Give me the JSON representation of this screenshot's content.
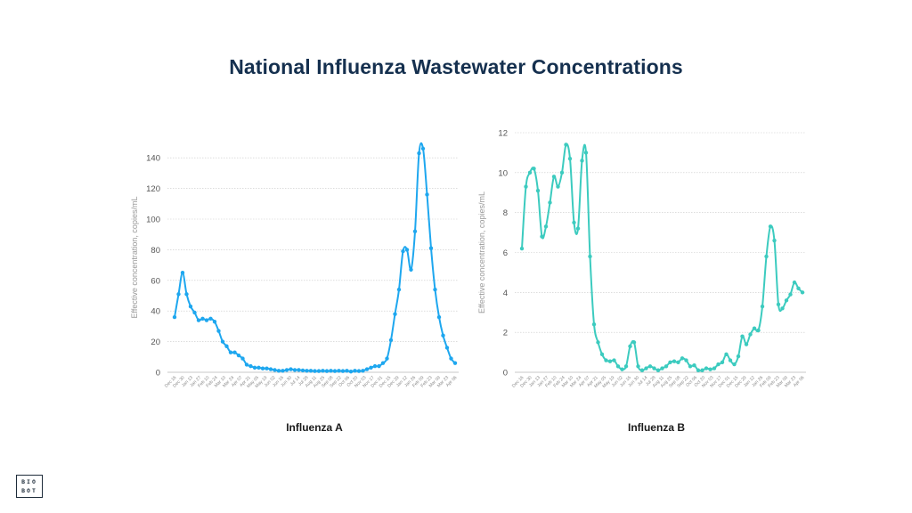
{
  "page_title": "National Influenza Wastewater Concentrations",
  "logo": {
    "line1": "BIO",
    "line2": "BOT"
  },
  "colors": {
    "influenza_a": "#1ea7ef",
    "influenza_b": "#3ccbbf",
    "title": "#15304f",
    "grid": "#c8c8c8"
  },
  "chart_data": [
    {
      "type": "line",
      "title": "Influenza A",
      "ylabel": "Effective concentration, copies/mL",
      "xlabel": "",
      "ylim": [
        0,
        150
      ],
      "yticks": [
        0,
        20,
        40,
        60,
        80,
        100,
        120,
        140
      ],
      "grid": true,
      "x_tick_labels": [
        "Dec 16",
        "Dec 30",
        "Jan 13",
        "Jan 27",
        "Feb 10",
        "Feb 24",
        "Mar 10",
        "Mar 24",
        "Apr 07",
        "Apr 21",
        "May 05",
        "May 19",
        "Jun 02",
        "Jun 16",
        "Jun 30",
        "Jul 14",
        "Jul 28",
        "Aug 11",
        "Aug 25",
        "Sep 08",
        "Sep 22",
        "Oct 06",
        "Oct 20",
        "Nov 03",
        "Nov 17",
        "Dec 01",
        "Dec 15",
        "Dec 29",
        "Jan 12",
        "Jan 26",
        "Feb 09",
        "Feb 23",
        "Mar 09",
        "Mar 23",
        "Apr 06"
      ],
      "values": [
        36,
        51,
        65,
        51,
        43,
        39,
        34,
        35,
        34,
        35,
        33,
        27,
        20,
        17,
        13,
        13,
        11,
        9,
        5,
        4,
        3,
        3,
        2.5,
        2.5,
        2,
        1.5,
        1,
        1,
        1.5,
        2,
        1.5,
        1.5,
        1.2,
        1,
        1,
        0.8,
        0.8,
        1,
        0.8,
        1,
        0.8,
        1,
        0.8,
        1,
        0.5,
        1,
        0.8,
        1,
        2,
        3,
        4,
        4,
        6,
        9,
        21,
        38,
        54,
        79,
        80,
        67,
        92,
        143,
        146,
        116,
        81,
        54,
        36,
        24,
        16,
        9,
        6
      ]
    },
    {
      "type": "line",
      "title": "Influenza B",
      "ylabel": "Effective concentration, copies/mL",
      "xlabel": "",
      "ylim": [
        0,
        12
      ],
      "yticks": [
        0,
        2,
        4,
        6,
        8,
        10,
        12
      ],
      "grid": true,
      "x_tick_labels": [
        "Dec 16",
        "Dec 30",
        "Jan 13",
        "Jan 27",
        "Feb 10",
        "Feb 24",
        "Mar 10",
        "Mar 24",
        "Apr 07",
        "Apr 21",
        "May 05",
        "May 19",
        "Jun 02",
        "Jun 16",
        "Jun 30",
        "Jul 14",
        "Jul 28",
        "Aug 11",
        "Aug 25",
        "Sep 08",
        "Sep 22",
        "Oct 06",
        "Oct 20",
        "Nov 03",
        "Nov 17",
        "Dec 01",
        "Dec 15",
        "Dec 29",
        "Jan 12",
        "Jan 26",
        "Feb 09",
        "Feb 23",
        "Mar 09",
        "Mar 23",
        "Apr 06"
      ],
      "values": [
        6.2,
        9.3,
        10,
        10.2,
        9.1,
        6.8,
        7.3,
        8.5,
        9.8,
        9.3,
        10,
        11.4,
        10.7,
        7.5,
        7.2,
        10.6,
        11,
        5.8,
        2.4,
        1.5,
        0.9,
        0.6,
        0.55,
        0.6,
        0.3,
        0.15,
        0.3,
        1.3,
        1.5,
        0.3,
        0.1,
        0.2,
        0.3,
        0.2,
        0.1,
        0.2,
        0.3,
        0.5,
        0.55,
        0.5,
        0.7,
        0.6,
        0.3,
        0.35,
        0.1,
        0.1,
        0.2,
        0.15,
        0.2,
        0.4,
        0.5,
        0.9,
        0.6,
        0.4,
        0.8,
        1.8,
        1.4,
        1.9,
        2.2,
        2.1,
        3.3,
        5.8,
        7.3,
        6.6,
        3.4,
        3.2,
        3.6,
        3.9,
        4.5,
        4.2,
        4
      ]
    }
  ]
}
